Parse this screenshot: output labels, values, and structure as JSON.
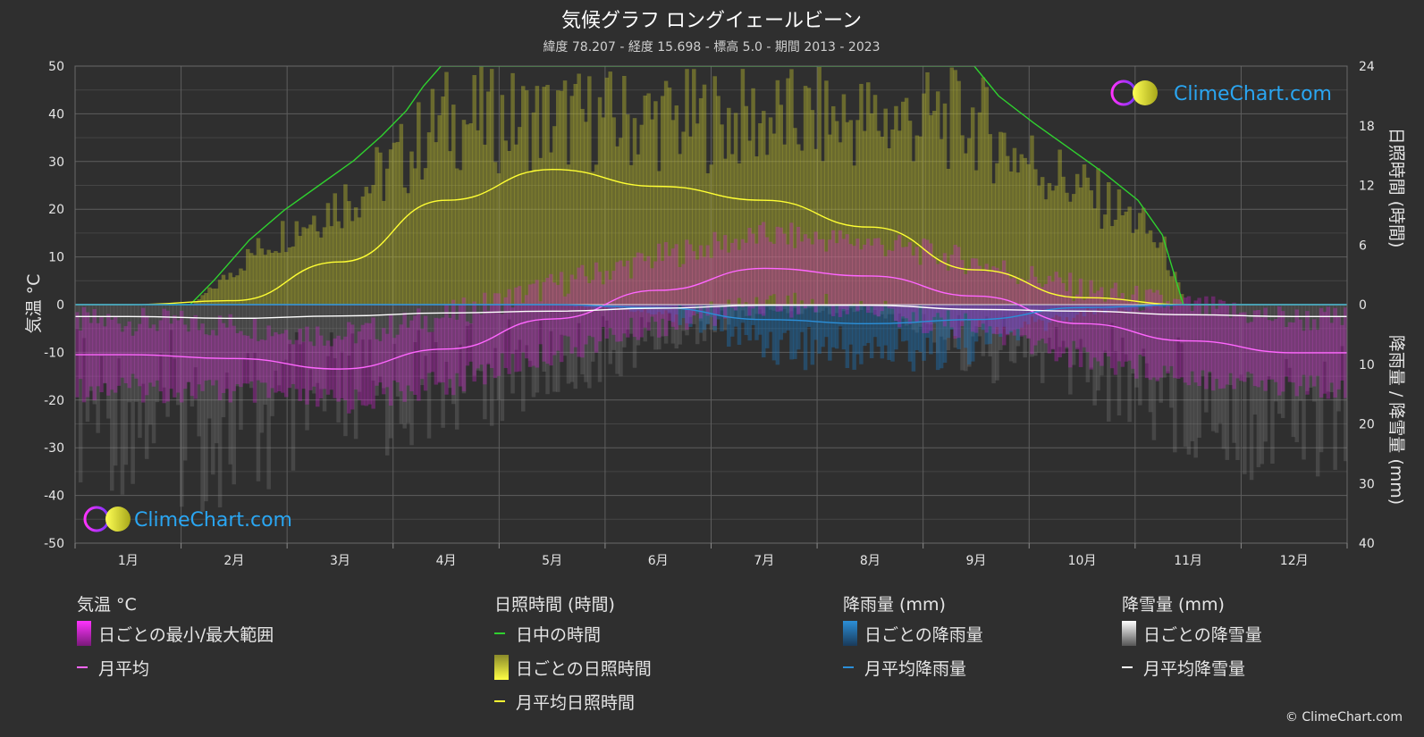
{
  "colors": {
    "background": "#2f2f2f",
    "grid": "#5a5a5a",
    "daylight": "#2fd12f",
    "sunshine_avg": "#ffff33",
    "sunshine_bar": "#b3b32e",
    "temp_avg": "#ff66ff",
    "temp_range": "#cc22cc",
    "rain_avg": "#2b8fd8",
    "rain_bar": "#1f6fae",
    "snow_avg": "#ffffff",
    "snow_bar": "#8a8a8a",
    "brand_blue": "#2aa6f2"
  },
  "chart_data": {
    "type": "line",
    "title": "気候グラフ ロングイェールビーン",
    "subtitle": "緯度 78.207 - 経度 15.698 - 標高 5.0 - 期間 2013 - 2023",
    "months": [
      "1月",
      "2月",
      "3月",
      "4月",
      "5月",
      "6月",
      "7月",
      "8月",
      "9月",
      "10月",
      "11月",
      "12月"
    ],
    "y_left": {
      "label": "気温 °C",
      "range": [
        -50,
        50
      ],
      "ticks": [
        "50",
        "40",
        "30",
        "20",
        "10",
        "0",
        "-10",
        "-20",
        "-30",
        "-40",
        "-50"
      ]
    },
    "y_right_top": {
      "label": "日照時間 (時間)",
      "range": [
        0,
        24
      ],
      "ticks": [
        "24",
        "18",
        "12",
        "6",
        "0"
      ]
    },
    "y_right_bottom": {
      "label": "降雨量 / 降雪量 (mm)",
      "range": [
        0,
        40
      ],
      "ticks": [
        "10",
        "20",
        "30",
        "40"
      ]
    },
    "series": [
      {
        "name": "日中の時間",
        "unit": "hours",
        "x_day": [
          33,
          40,
          50,
          60,
          70,
          80,
          88,
          95,
          100,
          105,
          258,
          265,
          275,
          285,
          295,
          305,
          312,
          318
        ],
        "values": [
          0,
          2.5,
          6.5,
          9.5,
          12,
          14.5,
          17,
          19.5,
          22,
          24,
          24,
          21,
          18.3,
          15.8,
          13.3,
          10.5,
          7,
          0
        ]
      },
      {
        "name": "月平均日照時間",
        "unit": "hours",
        "x_month": [
          1,
          2,
          3,
          4,
          5,
          6,
          7,
          8,
          9,
          10,
          11,
          12
        ],
        "values": [
          0,
          0.4,
          4.3,
          10.5,
          13.6,
          11.9,
          10.5,
          7.8,
          3.5,
          0.7,
          0,
          0
        ]
      },
      {
        "name": "月平均",
        "unit": "°C",
        "x_month": [
          1,
          2,
          3,
          4,
          5,
          6,
          7,
          8,
          9,
          10,
          11,
          12
        ],
        "values": [
          -10.5,
          -11.3,
          -13.5,
          -9.3,
          -3,
          3,
          7.6,
          6,
          1.8,
          -4,
          -7.6,
          -10.1
        ]
      },
      {
        "name": "月平均降雨量",
        "unit": "mm",
        "x_month": [
          1,
          2,
          3,
          4,
          5,
          6,
          7,
          8,
          9,
          10,
          11,
          12
        ],
        "values": [
          0,
          0,
          0,
          0,
          0,
          0.5,
          2.5,
          3.2,
          2.5,
          0.5,
          0,
          0
        ]
      },
      {
        "name": "月平均降雪量",
        "unit": "mm",
        "x_month": [
          1,
          2,
          3,
          4,
          5,
          6,
          7,
          8,
          9,
          10,
          11,
          12
        ],
        "values": [
          2.0,
          2.3,
          1.9,
          1.4,
          1.1,
          0.6,
          0.1,
          0.1,
          0.8,
          1.1,
          1.7,
          2.0
        ]
      }
    ]
  },
  "brand": {
    "logo_text": "ClimeChart.com"
  },
  "legend": {
    "temp": {
      "title": "気温 °C",
      "item1": "日ごとの最小/最大範囲",
      "item2": "月平均"
    },
    "sun": {
      "title": "日照時間 (時間)",
      "item1": "日中の時間",
      "item2": "日ごとの日照時間",
      "item3": "月平均日照時間"
    },
    "rain": {
      "title": "降雨量 (mm)",
      "item1": "日ごとの降雨量",
      "item2": "月平均降雨量"
    },
    "snow": {
      "title": "降雪量 (mm)",
      "item1": "日ごとの降雪量",
      "item2": "月平均降雪量"
    }
  },
  "copyright": "© ClimeChart.com"
}
